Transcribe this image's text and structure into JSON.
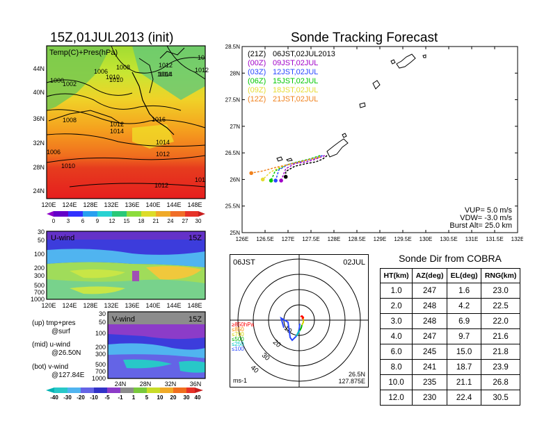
{
  "left_top": {
    "title": "15Z,01JUL2013 (init)",
    "label": "Temp(C)+Pres(hPa)",
    "lat_labels": [
      "44N",
      "40N",
      "36N",
      "32N",
      "28N",
      "24N"
    ],
    "lon_labels": [
      "120E",
      "124E",
      "128E",
      "132E",
      "136E",
      "140E",
      "144E",
      "148E"
    ],
    "isobar_labels": [
      "1000",
      "1002",
      "1006",
      "1008",
      "1010",
      "1012",
      "1014",
      "1016",
      "1008",
      "1012",
      "1014",
      "1014",
      "1012",
      "1010",
      "1012",
      "1006",
      "1010",
      "1012",
      "1014",
      "101",
      "10"
    ],
    "colorbar_labels": [
      "0",
      "3",
      "6",
      "9",
      "12",
      "15",
      "18",
      "21",
      "24",
      "27",
      "30"
    ]
  },
  "left_mid": {
    "label": "U-wind",
    "time": "15Z",
    "p_labels": [
      "30",
      "50",
      "100",
      "200",
      "300",
      "500",
      "700",
      "1000"
    ],
    "lon_labels": [
      "120E",
      "124E",
      "128E",
      "132E",
      "136E",
      "140E",
      "144E",
      "148E"
    ]
  },
  "left_bot": {
    "label": "V-wind",
    "time": "15Z",
    "p_labels": [
      "30",
      "50",
      "100",
      "200",
      "300",
      "500",
      "700",
      "1000"
    ],
    "lat_labels": [
      "24N",
      "28N",
      "32N",
      "36N"
    ],
    "colorbar_labels": [
      "-40",
      "-30",
      "-20",
      "-10",
      "-5",
      "-1",
      "1",
      "5",
      "10",
      "20",
      "30",
      "40"
    ]
  },
  "notes": {
    "up": "(up) tmp+pres",
    "up2": "@surf",
    "mid": "(mid) u-wind",
    "mid2": "@26.50N",
    "bot": "(bot) v-wind",
    "bot2": "@127.84E"
  },
  "track": {
    "title": "Sonde Tracking Forecast",
    "legend": [
      {
        "code": "(21Z)",
        "time": "06JST,02JUL2013",
        "color": "#000000"
      },
      {
        "code": "(00Z)",
        "time": "09JST,02JUL",
        "color": "#a000c8"
      },
      {
        "code": "(03Z)",
        "time": "12JST,02JUL",
        "color": "#2846ff"
      },
      {
        "code": "(06Z)",
        "time": "15JST,02JUL",
        "color": "#00c800"
      },
      {
        "code": "(09Z)",
        "time": "18JST,02JUL",
        "color": "#e6dc32"
      },
      {
        "code": "(12Z)",
        "time": "21JST,02JUL",
        "color": "#f0821e"
      }
    ],
    "vup": "VUP= 5.0 m/s",
    "vdw": "VDW= -3.0 m/s",
    "burst": "Burst Alt= 25.0 km"
  },
  "chart_data": {
    "type": "line",
    "xlabel": "",
    "ylabel": "",
    "x_range": [
      126.0,
      132.0
    ],
    "y_range": [
      25.0,
      28.5
    ],
    "x_ticks": [
      "126E",
      "126.5E",
      "127E",
      "127.5E",
      "128E",
      "128.5E",
      "129E",
      "129.5E",
      "130E",
      "130.5E",
      "131E",
      "131.5E",
      "132E"
    ],
    "y_ticks": [
      "25N",
      "25.5N",
      "26N",
      "26.5N",
      "27N",
      "27.5N",
      "28N",
      "28.5N"
    ],
    "series": [
      {
        "name": "(21Z) 06JST,02JUL2013",
        "color": "#000000",
        "lon": [
          127.85,
          127.75,
          127.6,
          127.4,
          127.15,
          126.95,
          126.95
        ],
        "lat": [
          26.45,
          26.38,
          26.33,
          26.3,
          26.25,
          26.15,
          26.05
        ]
      },
      {
        "name": "(00Z) 09JST,02JUL",
        "color": "#a000c8",
        "lon": [
          127.8,
          127.6,
          127.4,
          127.15,
          126.95,
          126.85
        ],
        "lat": [
          26.45,
          26.38,
          26.33,
          26.3,
          26.2,
          25.98
        ]
      },
      {
        "name": "(03Z) 12JST,02JUL",
        "color": "#2846ff",
        "lon": [
          127.75,
          127.5,
          127.25,
          127.0,
          126.8,
          126.73
        ],
        "lat": [
          26.45,
          26.38,
          26.33,
          26.28,
          26.18,
          25.98
        ]
      },
      {
        "name": "(06Z) 15JST,02JUL",
        "color": "#00c800",
        "lon": [
          127.7,
          127.45,
          127.2,
          126.95,
          126.72,
          126.63
        ],
        "lat": [
          26.45,
          26.38,
          26.33,
          26.27,
          26.16,
          25.98
        ]
      },
      {
        "name": "(09Z) 18JST,02JUL",
        "color": "#e6dc32",
        "lon": [
          127.7,
          127.4,
          127.1,
          126.85,
          126.62,
          126.45
        ],
        "lat": [
          26.43,
          26.36,
          26.3,
          26.24,
          26.14,
          26.0
        ]
      },
      {
        "name": "(12Z) 21JST,02JUL",
        "color": "#f0821e",
        "lon": [
          127.7,
          127.35,
          127.0,
          126.7,
          126.45,
          126.2
        ],
        "lat": [
          26.42,
          26.35,
          26.28,
          26.22,
          26.16,
          26.12
        ]
      }
    ]
  },
  "polar": {
    "time": "06JST",
    "date": "02JUL",
    "ring_labels": [
      "10",
      "20",
      "30",
      "40"
    ],
    "legend": [
      {
        "text": "≥850hPa",
        "color": "#ff0000"
      },
      {
        "text": "≤850",
        "color": "#ff8c00"
      },
      {
        "text": "≤700",
        "color": "#d2d200"
      },
      {
        "text": "≤500",
        "color": "#00b400"
      },
      {
        "text": "≤250",
        "color": "#00c8c8"
      },
      {
        "text": "≤100",
        "color": "#2846ff"
      }
    ],
    "unit": "ms-1",
    "lat": "26.5N",
    "lon": "127.875E"
  },
  "sonde_dir": {
    "title": "Sonde Dir from COBRA",
    "headers": [
      "HT(km)",
      "AZ(deg)",
      "EL(deg)",
      "RNG(km)"
    ],
    "rows": [
      [
        "1.0",
        "247",
        "1.6",
        "23.0"
      ],
      [
        "2.0",
        "248",
        "4.2",
        "22.5"
      ],
      [
        "3.0",
        "248",
        "6.9",
        "22.0"
      ],
      [
        "4.0",
        "247",
        "9.7",
        "21.6"
      ],
      [
        "6.0",
        "245",
        "15.0",
        "21.8"
      ],
      [
        "8.0",
        "241",
        "18.7",
        "23.9"
      ],
      [
        "10.0",
        "235",
        "21.1",
        "26.8"
      ],
      [
        "12.0",
        "230",
        "22.4",
        "30.5"
      ]
    ]
  }
}
